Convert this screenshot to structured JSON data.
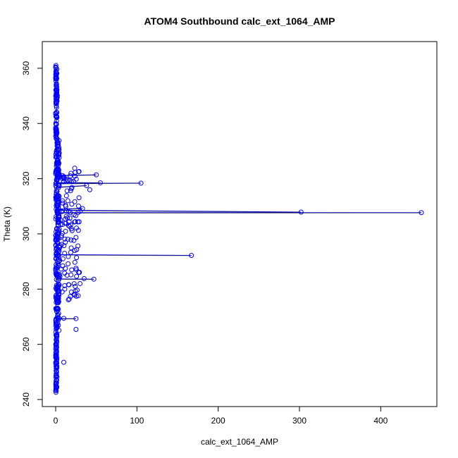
{
  "chart_data": {
    "type": "scatter",
    "title": "ATOM4 Southbound calc_ext_1064_AMP",
    "xlabel": "calc_ext_1064_AMP",
    "ylabel": "Theta (K)",
    "xlim": [
      0,
      450
    ],
    "ylim": [
      240,
      362
    ],
    "x_ticks": [
      0,
      100,
      200,
      300,
      400
    ],
    "y_ticks": [
      240,
      260,
      280,
      300,
      320,
      340,
      360
    ],
    "grid": false,
    "series_color": "#0000ff",
    "connector_color": "#000000",
    "marker": "open-circle",
    "points": [
      [
        450,
        307.7
      ],
      [
        302,
        307.9
      ],
      [
        167,
        292.2
      ],
      [
        105,
        318.4
      ],
      [
        55,
        318.5
      ],
      [
        50,
        321.4
      ],
      [
        47,
        283.6
      ],
      [
        35,
        283.8
      ],
      [
        33,
        309.2
      ],
      [
        30,
        308.2
      ],
      [
        28,
        301.3
      ],
      [
        25,
        298.7
      ],
      [
        25,
        269.3
      ],
      [
        25,
        265.4
      ],
      [
        20,
        316.8
      ],
      [
        15,
        312.0
      ],
      [
        12,
        310.4
      ],
      [
        12,
        287.5
      ],
      [
        10,
        253.5
      ],
      [
        10,
        269.4
      ],
      [
        8,
        320.0
      ],
      [
        8,
        279.0
      ],
      [
        6,
        305.0
      ],
      [
        5,
        295.0
      ],
      [
        4,
        290.0
      ],
      [
        3,
        333.0
      ],
      [
        3,
        283.0
      ],
      [
        2,
        349.5
      ],
      [
        2,
        350.1
      ],
      [
        1.5,
        344.0
      ],
      [
        1.2,
        273.0
      ],
      [
        1,
        262.0
      ],
      [
        1,
        258.0
      ],
      [
        0.8,
        248.5
      ],
      [
        0.6,
        246.0
      ],
      [
        0.5,
        243.2
      ],
      [
        0.4,
        242.6
      ],
      [
        0.5,
        357.0
      ],
      [
        0.4,
        359.0
      ],
      [
        0.3,
        360.3
      ],
      [
        0.3,
        361.0
      ],
      [
        0.6,
        354.0
      ],
      [
        0.7,
        336.0
      ],
      [
        1.0,
        328.0
      ],
      [
        1.4,
        313.0
      ],
      [
        2.2,
        300.5
      ],
      [
        1.8,
        285.5
      ],
      [
        2.5,
        276.0
      ],
      [
        0.9,
        266.0
      ],
      [
        0.5,
        252.0
      ],
      [
        38,
        317.5
      ],
      [
        42,
        316.0
      ],
      [
        22,
        319.0
      ],
      [
        18,
        321.0
      ],
      [
        14,
        285.0
      ],
      [
        30,
        282.0
      ],
      [
        24,
        281.0
      ],
      [
        9,
        291.0
      ],
      [
        11,
        293.0
      ],
      [
        16,
        303.0
      ]
    ],
    "connected": [
      [
        [
          0,
          307.7
        ],
        [
          450,
          307.7
        ]
      ],
      [
        [
          0,
          308.6
        ],
        [
          302,
          307.9
        ]
      ],
      [
        [
          0,
          292.5
        ],
        [
          167,
          292.2
        ]
      ],
      [
        [
          0,
          318.3
        ],
        [
          105,
          318.4
        ]
      ],
      [
        [
          0,
          318.6
        ],
        [
          55,
          318.5
        ]
      ],
      [
        [
          0,
          321.2
        ],
        [
          50,
          321.4
        ]
      ],
      [
        [
          0,
          283.7
        ],
        [
          47,
          283.6
        ]
      ],
      [
        [
          0,
          309.0
        ],
        [
          33,
          309.2
        ]
      ],
      [
        [
          0,
          269.3
        ],
        [
          25,
          269.3
        ]
      ],
      [
        [
          0,
          316.9
        ],
        [
          38,
          317.5
        ]
      ]
    ]
  }
}
